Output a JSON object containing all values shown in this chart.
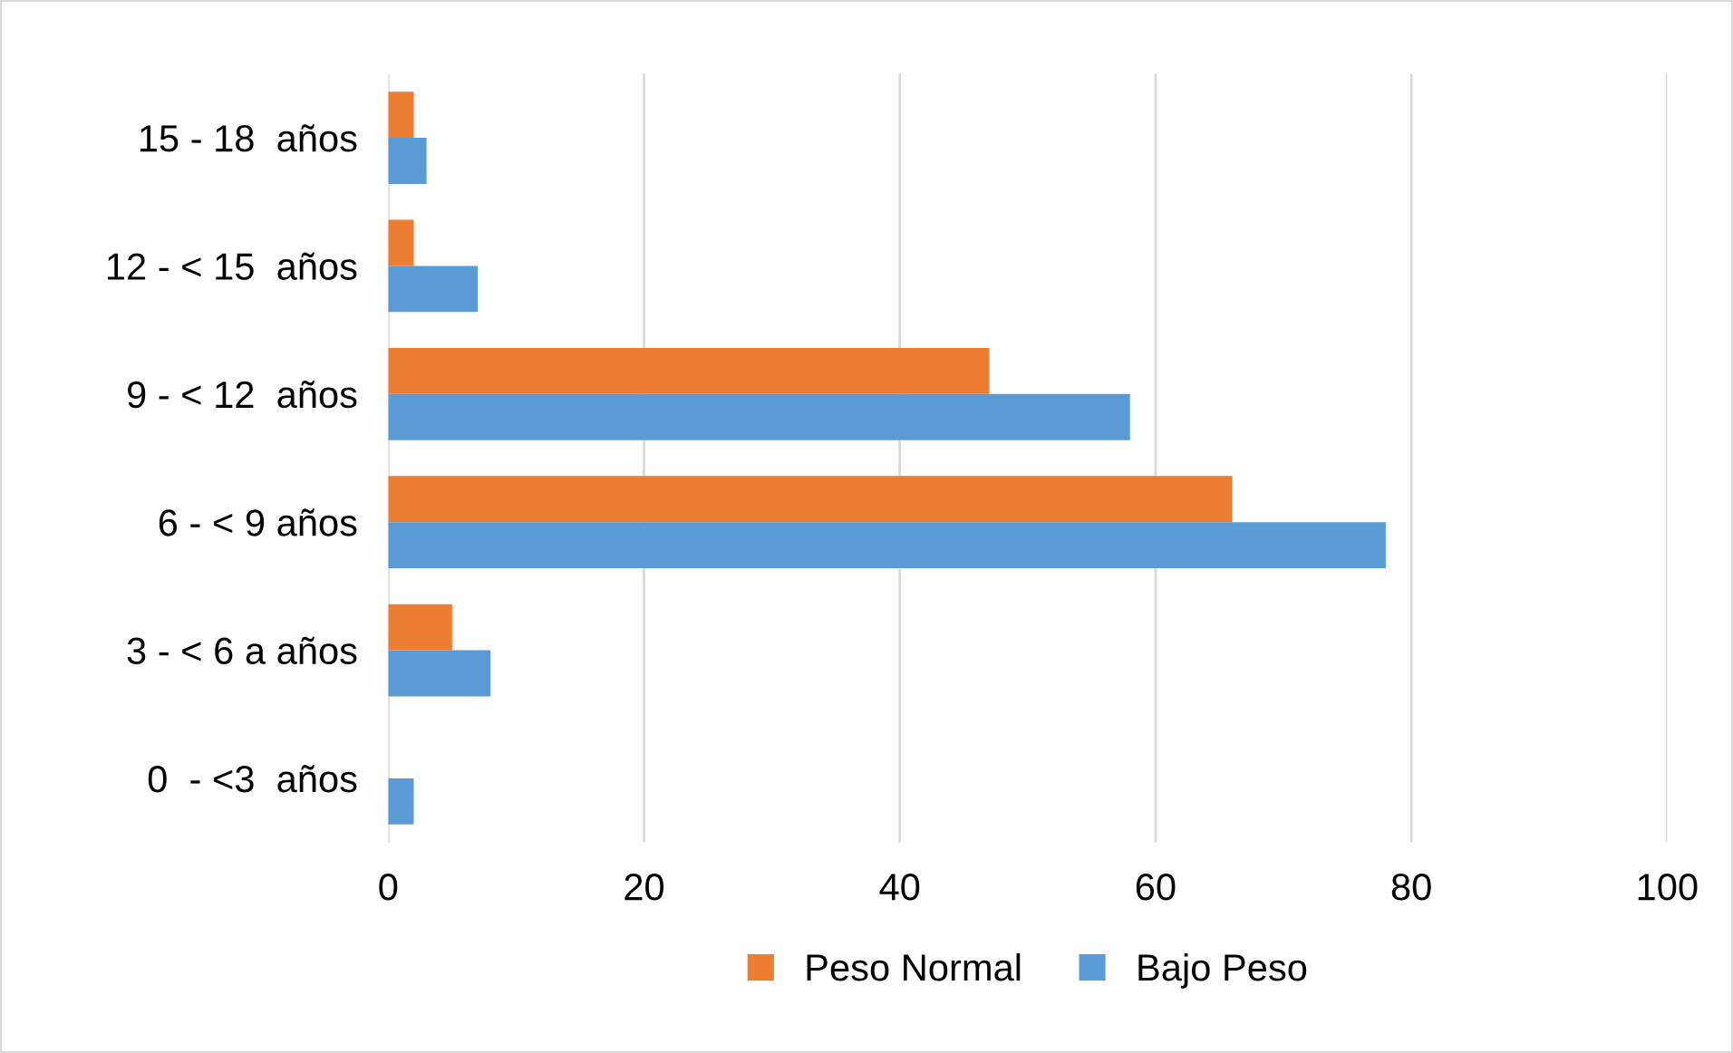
{
  "chart_data": {
    "type": "bar",
    "orientation": "horizontal",
    "categories": [
      "15 - 18  años",
      "12 - < 15  años",
      "9 - < 12  años",
      "6 - < 9 años",
      "3 - < 6 a años",
      "0  - <3  años"
    ],
    "series": [
      {
        "name": "Peso Normal",
        "color": "#ed7d31",
        "values": [
          2,
          2,
          47,
          66,
          5,
          0
        ]
      },
      {
        "name": "Bajo Peso",
        "color": "#5b9bd5",
        "values": [
          3,
          7,
          58,
          78,
          8,
          2
        ]
      }
    ],
    "xlim": [
      0,
      100
    ],
    "xticks": [
      0,
      20,
      40,
      60,
      80,
      100
    ],
    "grid": "x",
    "legend": "bottom"
  }
}
